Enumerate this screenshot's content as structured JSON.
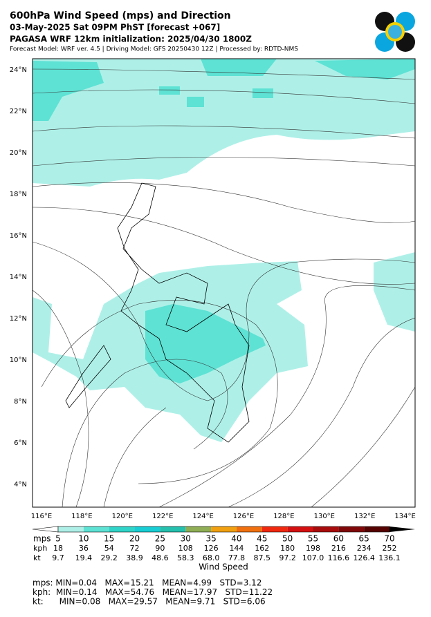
{
  "header": {
    "title": "600hPa Wind Speed (mps) and Direction",
    "line2": "03-May-2025 Sat 09PM PhST [forecast +067]",
    "line3": "PAGASA WRF 12km initialization: 2025/04/30 1800Z",
    "line4": "Forecast Model: WRF ver. 4.5 | Driving Model: GFS 20250430 12Z | Processed by: RDTD-NMS"
  },
  "map": {
    "lat_labels": [
      "24°N",
      "22°N",
      "20°N",
      "18°N",
      "16°N",
      "14°N",
      "12°N",
      "10°N",
      "8°N",
      "6°N",
      "4°N"
    ],
    "lon_labels": [
      "116°E",
      "118°E",
      "120°E",
      "122°E",
      "124°E",
      "126°E",
      "128°E",
      "130°E",
      "132°E",
      "134°E"
    ]
  },
  "colorbar": {
    "title": "Wind Speed",
    "colors": [
      "#aef0e8",
      "#5de2d4",
      "#30d4c8",
      "#18cdd4",
      "#25c0ae",
      "#8fae55",
      "#f0a010",
      "#f07010",
      "#f02810",
      "#d41010",
      "#a80c0c",
      "#800808",
      "#560202"
    ],
    "end_colors": [
      "#ffffff",
      "#000000"
    ],
    "rows": [
      {
        "unit": "mps",
        "labels": [
          "5",
          "10",
          "15",
          "20",
          "25",
          "30",
          "35",
          "40",
          "45",
          "50",
          "55",
          "60",
          "65",
          "70"
        ]
      },
      {
        "unit": "kph",
        "labels": [
          "18",
          "36",
          "54",
          "72",
          "90",
          "108",
          "126",
          "144",
          "162",
          "180",
          "198",
          "216",
          "234",
          "252"
        ]
      },
      {
        "unit": "kt",
        "labels": [
          "9.7",
          "19.4",
          "29.2",
          "38.9",
          "48.6",
          "58.3",
          "68.0",
          "77.8",
          "87.5",
          "97.2",
          "107.0",
          "116.6",
          "126.4",
          "136.1"
        ]
      }
    ]
  },
  "stats": [
    "mps: MIN=0.04   MAX=15.21   MEAN=4.99   STD=3.12",
    "kph:  MIN=0.14   MAX=54.76   MEAN=17.97   STD=11.22",
    "kt:      MIN=0.08   MAX=29.57   MEAN=9.71   STD=6.06"
  ]
}
